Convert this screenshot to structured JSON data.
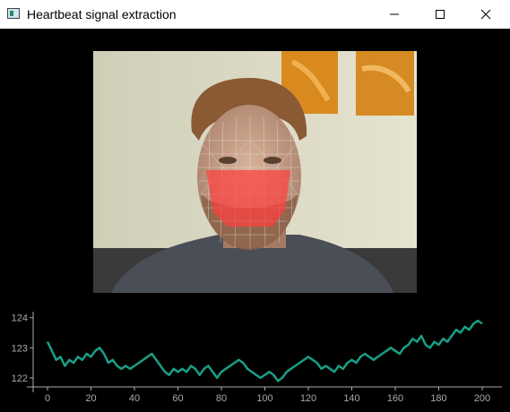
{
  "window": {
    "title": "Heartbeat signal extraction",
    "icon": "app-window-icon",
    "controls": [
      "minimize-icon",
      "maximize-icon",
      "close-icon"
    ]
  },
  "colors": {
    "signal": "#1a9e86",
    "axis": "#aaaaaa",
    "overlay": "#ff4040"
  },
  "chart_data": {
    "type": "line",
    "x_ticks": [
      0,
      20,
      40,
      60,
      80,
      100,
      120,
      140,
      160,
      180,
      200
    ],
    "y_ticks": [
      122,
      123,
      124
    ],
    "xlim": [
      -8,
      208
    ],
    "ylim": [
      121.7,
      124.2
    ],
    "series": [
      {
        "x": [
          0,
          2,
          4,
          6,
          8,
          10,
          12,
          14,
          16,
          18,
          20,
          22,
          24,
          26,
          28,
          30,
          32,
          34,
          36,
          38,
          40,
          42,
          44,
          46,
          48,
          50,
          52,
          54,
          56,
          58,
          60,
          62,
          64,
          66,
          68,
          70,
          72,
          74,
          76,
          78,
          80,
          82,
          84,
          86,
          88,
          90,
          92,
          94,
          96,
          98,
          100,
          102,
          104,
          106,
          108,
          110,
          112,
          114,
          116,
          118,
          120,
          122,
          124,
          126,
          128,
          130,
          132,
          134,
          136,
          138,
          140,
          142,
          144,
          146,
          148,
          150,
          152,
          154,
          156,
          158,
          160,
          162,
          164,
          166,
          168,
          170,
          172,
          174,
          176,
          178,
          180,
          182,
          184,
          186,
          188,
          190,
          192,
          194,
          196,
          198,
          200
        ],
        "values": [
          123.2,
          122.9,
          122.6,
          122.7,
          122.4,
          122.6,
          122.5,
          122.7,
          122.6,
          122.8,
          122.7,
          122.9,
          123.0,
          122.8,
          122.5,
          122.6,
          122.4,
          122.3,
          122.4,
          122.3,
          122.4,
          122.5,
          122.6,
          122.7,
          122.8,
          122.6,
          122.4,
          122.2,
          122.1,
          122.3,
          122.2,
          122.3,
          122.2,
          122.4,
          122.3,
          122.1,
          122.3,
          122.4,
          122.2,
          122.0,
          122.2,
          122.3,
          122.4,
          122.5,
          122.6,
          122.5,
          122.3,
          122.2,
          122.1,
          122.0,
          122.1,
          122.2,
          122.1,
          121.9,
          122.0,
          122.2,
          122.3,
          122.4,
          122.5,
          122.6,
          122.7,
          122.6,
          122.5,
          122.3,
          122.4,
          122.3,
          122.2,
          122.4,
          122.3,
          122.5,
          122.6,
          122.5,
          122.7,
          122.8,
          122.7,
          122.6,
          122.7,
          122.8,
          122.9,
          123.0,
          122.9,
          122.8,
          123.0,
          123.1,
          123.3,
          123.2,
          123.4,
          123.1,
          123.0,
          123.2,
          123.1,
          123.3,
          123.2,
          123.4,
          123.6,
          123.5,
          123.7,
          123.6,
          123.8,
          123.9,
          123.8
        ]
      }
    ]
  }
}
